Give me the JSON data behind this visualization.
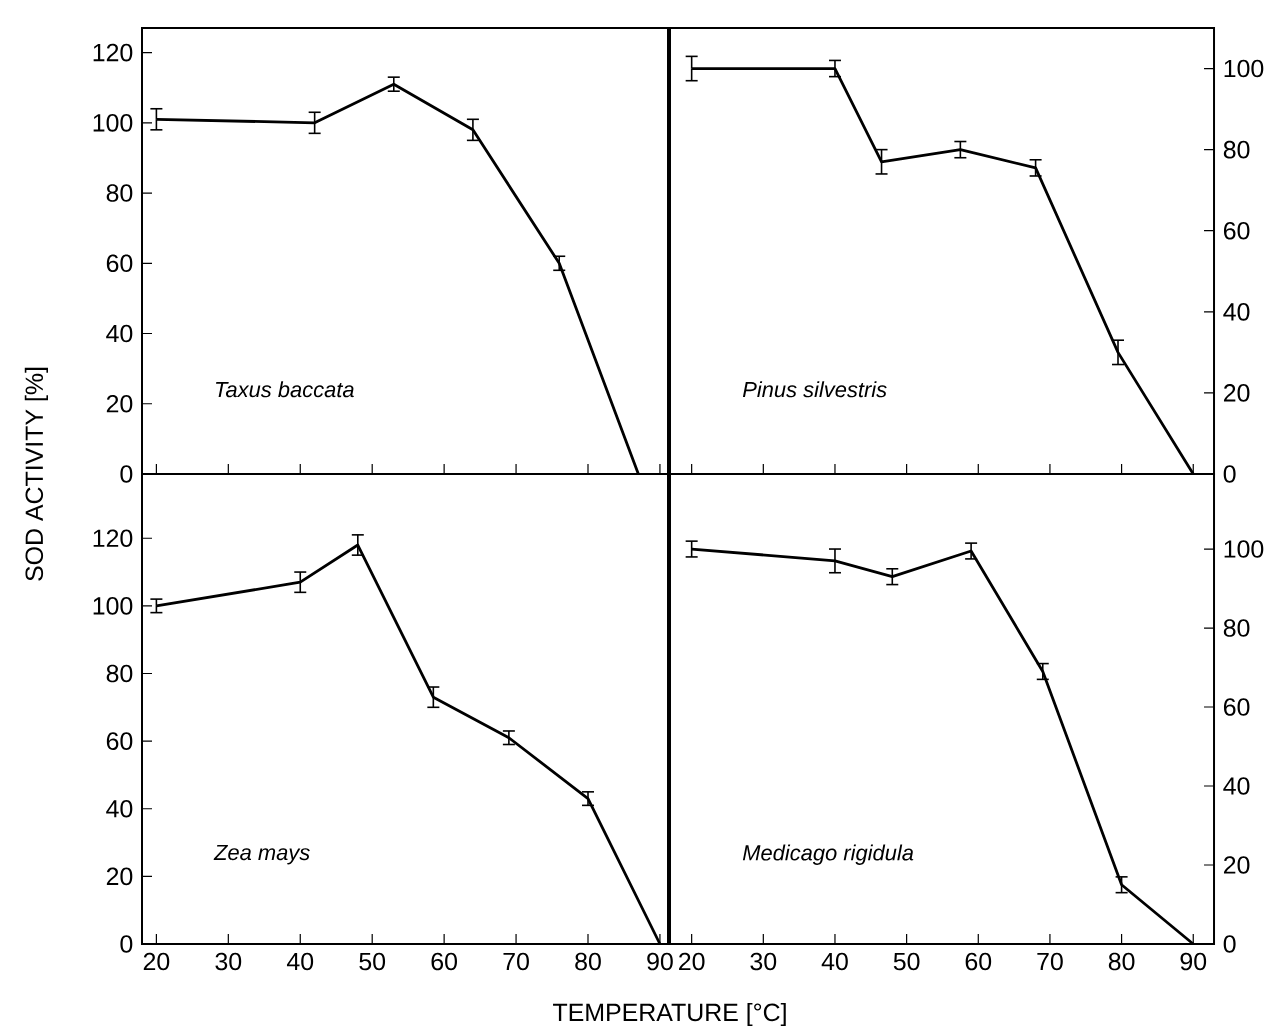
{
  "chart_data": [
    {
      "type": "line",
      "color": "#000000",
      "line_style": "solid",
      "annotations": [
        "Taxus baccata"
      ],
      "x": [
        20,
        42,
        53,
        64,
        76,
        87
      ],
      "values": [
        101,
        100,
        111,
        98,
        60,
        0
      ],
      "errors": [
        3,
        3,
        2,
        3,
        2,
        null
      ],
      "xlim": [
        18,
        91.4
      ],
      "xticks": [
        20,
        30,
        40,
        50,
        60,
        70,
        80,
        90
      ],
      "ylim": [
        0,
        127
      ],
      "yticks": [
        0,
        20,
        40,
        60,
        80,
        100,
        120
      ],
      "tick_labels": "y"
    },
    {
      "type": "line",
      "color": "#000000",
      "line_style": "solid",
      "annotations": [
        "Pinus silvestris"
      ],
      "x": [
        20,
        40,
        46.5,
        57.5,
        68,
        79.5,
        90
      ],
      "values": [
        100,
        100,
        77,
        80,
        75.5,
        30,
        0
      ],
      "errors": [
        3,
        2,
        3,
        2,
        2,
        3,
        null
      ],
      "xlim": [
        16.7,
        92.9
      ],
      "xticks": [
        20,
        30,
        40,
        50,
        60,
        70,
        80,
        90
      ],
      "ylim": [
        0,
        110
      ],
      "yticks": [
        0,
        20,
        40,
        60,
        80,
        100
      ],
      "tick_labels": "y"
    },
    {
      "type": "line",
      "color": "#000000",
      "line_style": "solid",
      "xlabel": "TEMPERATURE [°C]",
      "ylabel": "SOD ACTIVITY [%]",
      "annotations": [
        "Zea mays"
      ],
      "x": [
        20,
        40,
        48,
        58.5,
        69,
        80,
        90
      ],
      "values": [
        100,
        107,
        118,
        73,
        61,
        43,
        0
      ],
      "errors": [
        2,
        3,
        3,
        3,
        2,
        2,
        null
      ],
      "xlim": [
        18,
        91.4
      ],
      "xticks": [
        20,
        30,
        40,
        50,
        60,
        70,
        80,
        90
      ],
      "ylim": [
        0,
        139
      ],
      "yticks": [
        0,
        20,
        40,
        60,
        80,
        100,
        120
      ]
    },
    {
      "type": "line",
      "color": "#000000",
      "line_style": "solid",
      "annotations": [
        "Medicago rigidula"
      ],
      "x": [
        20,
        40,
        48,
        59,
        69,
        80,
        90
      ],
      "values": [
        100,
        97,
        93,
        99.5,
        69,
        15,
        0
      ],
      "errors": [
        2,
        3,
        2,
        2,
        2,
        2,
        null
      ],
      "xlim": [
        16.7,
        92.9
      ],
      "xticks": [
        20,
        30,
        40,
        50,
        60,
        70,
        80,
        90
      ],
      "ylim": [
        0,
        119
      ],
      "yticks": [
        0,
        20,
        40,
        60,
        80,
        100
      ]
    }
  ]
}
